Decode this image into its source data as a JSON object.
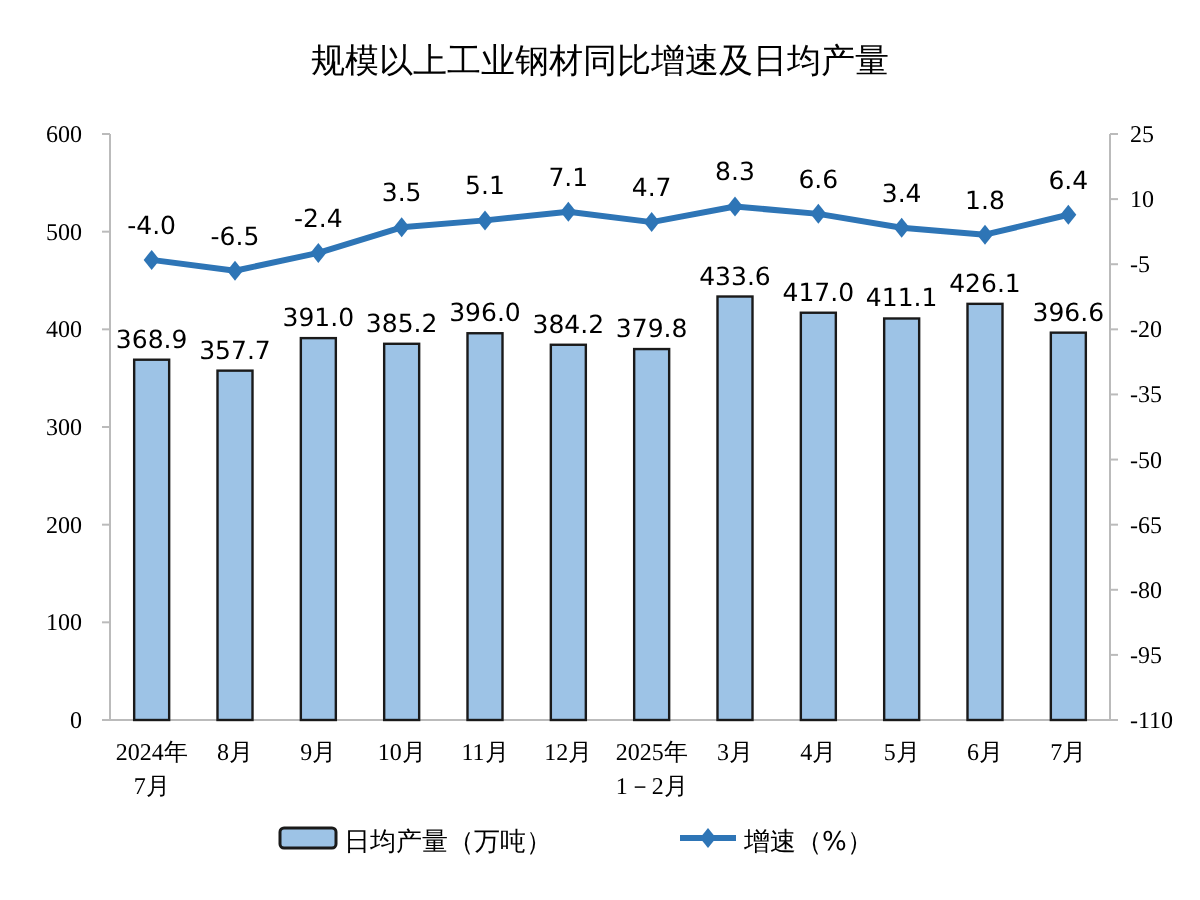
{
  "chart_data": {
    "type": "bar",
    "title": "规模以上工业钢材同比增速及日均产量",
    "categories": [
      "2024年\n7月",
      "8月",
      "9月",
      "10月",
      "11月",
      "12月",
      "2025年\n1－2月",
      "3月",
      "4月",
      "5月",
      "6月",
      "7月"
    ],
    "series": [
      {
        "name": "日均产量（万吨）",
        "color": "#9dc3e6",
        "values": [
          368.9,
          357.7,
          391.0,
          385.2,
          396.0,
          384.2,
          379.8,
          433.6,
          417.0,
          411.1,
          426.1,
          396.6
        ],
        "value_labels": [
          "368.9",
          "357.7",
          "391.0",
          "385.2",
          "396.0",
          "384.2",
          "379.8",
          "433.6",
          "417.0",
          "411.1",
          "426.1",
          "396.6"
        ]
      },
      {
        "name": "增速（%）",
        "type": "line",
        "axis": "y2",
        "color": "#2e75b6",
        "marker": "diamond",
        "values": [
          -4.0,
          -6.5,
          -2.4,
          3.5,
          5.1,
          7.1,
          4.7,
          8.3,
          6.6,
          3.4,
          1.8,
          6.4
        ],
        "value_labels": [
          "-4.0",
          "-6.5",
          "-2.4",
          "3.5",
          "5.1",
          "7.1",
          "4.7",
          "8.3",
          "6.6",
          "3.4",
          "1.8",
          "6.4"
        ]
      }
    ],
    "ylim": [
      0,
      600
    ],
    "yticks": [
      0,
      100,
      200,
      300,
      400,
      500,
      600
    ],
    "y2lim": [
      -110,
      25
    ],
    "y2ticks": [
      -110,
      -95,
      -80,
      -65,
      -50,
      -35,
      -20,
      -5,
      10,
      25
    ],
    "legend": "bottom"
  }
}
